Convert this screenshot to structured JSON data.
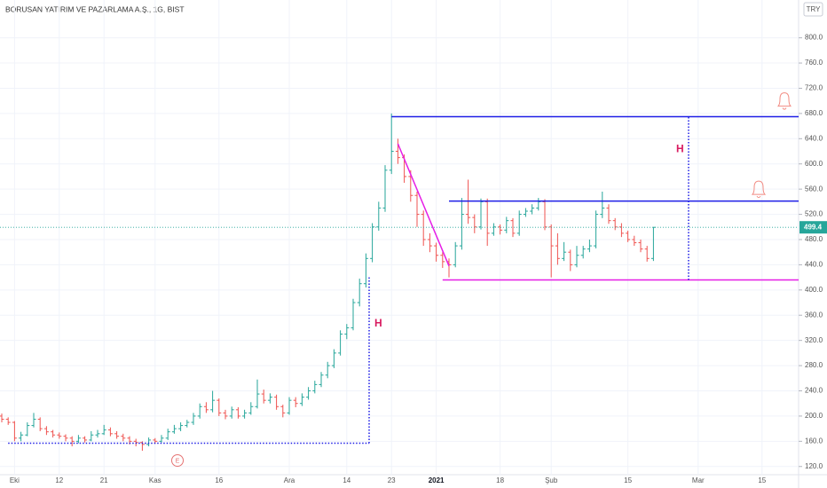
{
  "chart_data": {
    "type": "ohlc",
    "title": "BORUSAN YATIRIM VE PAZARLAMA A.Ş., 1G, BIST",
    "currency": "TRY",
    "up_color": "#26a69a",
    "down_color": "#ef5350",
    "categories": [
      null,
      null,
      "Eki",
      null,
      null,
      null,
      null,
      null,
      null,
      "12",
      null,
      null,
      null,
      null,
      null,
      null,
      "21",
      null,
      null,
      null,
      null,
      null,
      null,
      null,
      "Kas",
      null,
      null,
      null,
      null,
      null,
      null,
      null,
      null,
      null,
      "16",
      null,
      null,
      null,
      null,
      null,
      null,
      null,
      null,
      null,
      null,
      "Ara",
      null,
      null,
      null,
      null,
      null,
      null,
      null,
      null,
      "14",
      null,
      null,
      null,
      null,
      null,
      null,
      "23",
      null,
      null,
      null,
      null,
      null,
      null,
      "2021",
      null,
      null,
      null,
      null,
      null,
      null,
      null,
      null,
      null,
      "18",
      null,
      null,
      null,
      null,
      null,
      null,
      null,
      "Şub",
      null,
      null,
      null,
      null,
      null,
      null,
      null,
      null,
      null,
      null,
      null,
      "15",
      null,
      null,
      null,
      null,
      null,
      null,
      null,
      null,
      null,
      null,
      "Mar",
      null,
      null,
      null,
      null,
      null,
      null,
      null,
      null,
      null,
      "15",
      null,
      null,
      null,
      null,
      null
    ],
    "ohlc": [
      [
        200,
        204,
        190,
        195
      ],
      [
        195,
        198,
        186,
        190
      ],
      [
        190,
        192,
        160,
        165
      ],
      [
        165,
        175,
        160,
        170
      ],
      [
        170,
        190,
        168,
        185
      ],
      [
        185,
        205,
        182,
        195
      ],
      [
        195,
        198,
        176,
        180
      ],
      [
        180,
        184,
        170,
        175
      ],
      [
        175,
        178,
        166,
        170
      ],
      [
        170,
        174,
        164,
        168
      ],
      [
        168,
        171,
        160,
        165
      ],
      [
        165,
        168,
        152,
        160
      ],
      [
        160,
        170,
        157,
        165
      ],
      [
        165,
        168,
        158,
        162
      ],
      [
        162,
        176,
        160,
        170
      ],
      [
        170,
        178,
        166,
        172
      ],
      [
        172,
        186,
        170,
        178
      ],
      [
        178,
        182,
        168,
        172
      ],
      [
        172,
        176,
        164,
        168
      ],
      [
        168,
        172,
        160,
        165
      ],
      [
        165,
        168,
        155,
        160
      ],
      [
        160,
        164,
        152,
        158
      ],
      [
        158,
        160,
        145,
        155
      ],
      [
        155,
        166,
        152,
        162
      ],
      [
        162,
        165,
        156,
        160
      ],
      [
        160,
        170,
        158,
        165
      ],
      [
        165,
        180,
        162,
        175
      ],
      [
        175,
        186,
        172,
        180
      ],
      [
        180,
        190,
        176,
        185
      ],
      [
        185,
        194,
        182,
        190
      ],
      [
        190,
        205,
        186,
        200
      ],
      [
        200,
        220,
        196,
        215
      ],
      [
        215,
        222,
        205,
        210
      ],
      [
        210,
        240,
        206,
        225
      ],
      [
        225,
        228,
        200,
        205
      ],
      [
        205,
        210,
        195,
        200
      ],
      [
        200,
        215,
        196,
        210
      ],
      [
        210,
        214,
        196,
        200
      ],
      [
        200,
        210,
        196,
        205
      ],
      [
        205,
        222,
        202,
        215
      ],
      [
        215,
        258,
        212,
        235
      ],
      [
        235,
        242,
        220,
        225
      ],
      [
        225,
        236,
        220,
        230
      ],
      [
        230,
        234,
        210,
        215
      ],
      [
        215,
        218,
        198,
        205
      ],
      [
        205,
        230,
        202,
        225
      ],
      [
        225,
        230,
        214,
        220
      ],
      [
        220,
        236,
        216,
        230
      ],
      [
        230,
        246,
        226,
        240
      ],
      [
        240,
        256,
        236,
        250
      ],
      [
        250,
        270,
        246,
        265
      ],
      [
        265,
        286,
        260,
        280
      ],
      [
        280,
        306,
        276,
        300
      ],
      [
        300,
        336,
        296,
        330
      ],
      [
        330,
        346,
        322,
        340
      ],
      [
        340,
        386,
        336,
        380
      ],
      [
        380,
        418,
        374,
        410
      ],
      [
        410,
        458,
        404,
        450
      ],
      [
        450,
        506,
        444,
        500
      ],
      [
        500,
        540,
        494,
        530
      ],
      [
        530,
        598,
        524,
        590
      ],
      [
        590,
        680,
        584,
        620
      ],
      [
        620,
        640,
        600,
        610
      ],
      [
        610,
        615,
        570,
        580
      ],
      [
        580,
        590,
        540,
        550
      ],
      [
        550,
        556,
        500,
        520
      ],
      [
        520,
        526,
        470,
        480
      ],
      [
        480,
        490,
        460,
        470
      ],
      [
        470,
        475,
        445,
        455
      ],
      [
        455,
        460,
        435,
        445
      ],
      [
        445,
        450,
        420,
        440
      ],
      [
        440,
        476,
        436,
        470
      ],
      [
        470,
        546,
        464,
        520
      ],
      [
        520,
        575,
        505,
        515
      ],
      [
        515,
        520,
        490,
        500
      ],
      [
        500,
        545,
        496,
        540
      ],
      [
        540,
        545,
        470,
        490
      ],
      [
        490,
        506,
        486,
        500
      ],
      [
        500,
        504,
        488,
        495
      ],
      [
        495,
        516,
        490,
        510
      ],
      [
        510,
        514,
        484,
        490
      ],
      [
        490,
        526,
        486,
        520
      ],
      [
        520,
        530,
        516,
        525
      ],
      [
        525,
        536,
        520,
        530
      ],
      [
        530,
        546,
        526,
        540
      ],
      [
        540,
        544,
        495,
        500
      ],
      [
        500,
        504,
        420,
        470
      ],
      [
        470,
        490,
        440,
        450
      ],
      [
        450,
        476,
        446,
        460
      ],
      [
        460,
        464,
        430,
        440
      ],
      [
        440,
        470,
        436,
        455
      ],
      [
        455,
        470,
        450,
        465
      ],
      [
        465,
        480,
        460,
        470
      ],
      [
        470,
        526,
        466,
        520
      ],
      [
        520,
        556,
        514,
        530
      ],
      [
        530,
        536,
        505,
        510
      ],
      [
        510,
        514,
        495,
        500
      ],
      [
        500,
        506,
        484,
        490
      ],
      [
        490,
        494,
        476,
        480
      ],
      [
        480,
        486,
        470,
        475
      ],
      [
        475,
        480,
        460,
        465
      ],
      [
        465,
        470,
        445,
        450
      ],
      [
        450,
        500,
        446,
        499.4
      ],
      null,
      null,
      null,
      null,
      null,
      null,
      null,
      null,
      null,
      null,
      null,
      null,
      null,
      null,
      null,
      null,
      null,
      null,
      null,
      null,
      null,
      null
    ],
    "ylim": [
      107,
      860
    ],
    "yticks": [
      {
        "value": 120,
        "label": "120.0"
      },
      {
        "value": 160,
        "label": "160.0"
      },
      {
        "value": 200,
        "label": "200.0"
      },
      {
        "value": 240,
        "label": "240.0"
      },
      {
        "value": 280,
        "label": "280.0"
      },
      {
        "value": 320,
        "label": "320.0"
      },
      {
        "value": 360,
        "label": "360.0"
      },
      {
        "value": 400,
        "label": "400.0"
      },
      {
        "value": 440,
        "label": "440.0"
      },
      {
        "value": 480,
        "label": "480.0"
      },
      {
        "value": 520,
        "label": "520.0"
      },
      {
        "value": 560,
        "label": "560.0"
      },
      {
        "value": 600,
        "label": "600.0"
      },
      {
        "value": 640,
        "label": "640.0"
      },
      {
        "value": 680,
        "label": "680.0"
      },
      {
        "value": 720,
        "label": "720.0"
      },
      {
        "value": 760,
        "label": "760.0"
      },
      {
        "value": 800,
        "label": "800.0"
      }
    ],
    "grid": true,
    "levels": [
      {
        "value": 675,
        "color": "#1e1ee6"
      },
      {
        "value": 541,
        "color": "#1e1ee6"
      },
      {
        "value": 416,
        "color": "#e61ee6"
      }
    ],
    "support": {
      "value": 157,
      "color": "#1e1ee6"
    },
    "trendline": {
      "from": 632,
      "to": 438,
      "color": "#e61ee6"
    },
    "projections": [
      {
        "from": 157,
        "to": 420,
        "label": "H"
      },
      {
        "from": 416,
        "to": 675,
        "label": "H"
      }
    ],
    "alerts": [
      700,
      560
    ],
    "event_label": "E"
  }
}
